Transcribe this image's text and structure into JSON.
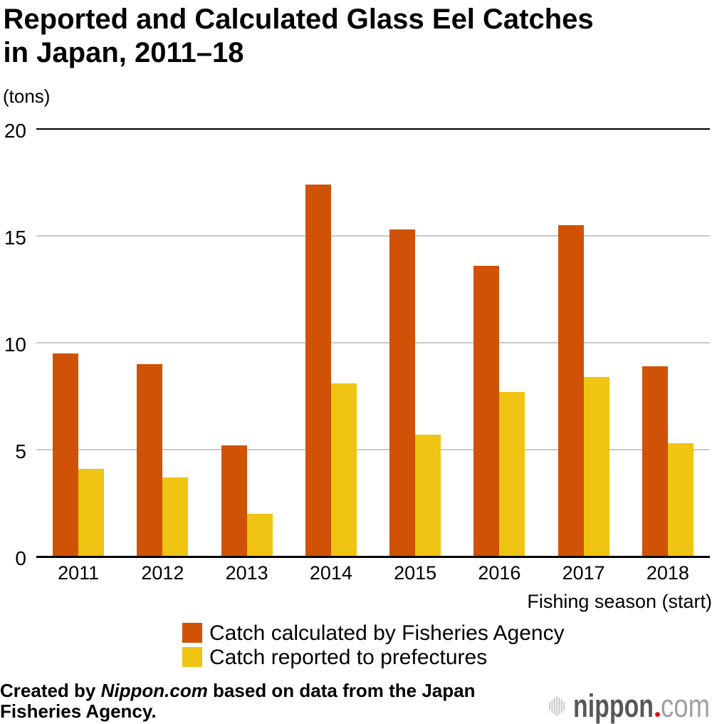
{
  "title": {
    "line1": "Reported and Calculated Glass Eel Catches",
    "line2": "in Japan, 2011–18"
  },
  "unit_label": "(tons)",
  "x_axis_label": "Fishing season (start)",
  "legend": {
    "items": [
      {
        "label": "Catch calculated by Fisheries Agency",
        "color": "#d05206"
      },
      {
        "label": "Catch reported to prefectures",
        "color": "#efc412"
      }
    ]
  },
  "footer": {
    "line1_prefix": "Created by ",
    "line1_brand": "Nippon.com",
    "line1_suffix": " based on data from the Japan",
    "line2": "Fisheries Agency."
  },
  "logo": {
    "icon": "soundbars-icon",
    "name": "nippon",
    "dot": ".",
    "tld": "com",
    "colors": {
      "bars": "#c9caca",
      "name": "#595757",
      "dot": "#e60012",
      "tld": "#9fa0a0"
    }
  },
  "colors": {
    "background": "#ffffff",
    "grid_minor": "#c9c9c9",
    "grid_major": "#000000",
    "text": "#000000"
  },
  "chart_data": {
    "type": "bar",
    "title": "Reported and Calculated Glass Eel Catches in Japan, 2011–18",
    "categories": [
      "2011",
      "2012",
      "2013",
      "2014",
      "2015",
      "2016",
      "2017",
      "2018"
    ],
    "series": [
      {
        "name": "Catch calculated by Fisheries Agency",
        "color": "#d05206",
        "values": [
          9.5,
          9.0,
          5.2,
          17.4,
          15.3,
          13.6,
          15.5,
          8.9
        ]
      },
      {
        "name": "Catch reported to prefectures",
        "color": "#efc412",
        "values": [
          4.1,
          3.7,
          2.0,
          8.1,
          5.7,
          7.7,
          8.4,
          5.3
        ]
      }
    ],
    "xlabel": "Fishing season (start)",
    "ylabel": "(tons)",
    "ylim": [
      0,
      20
    ],
    "yticks": [
      0,
      5,
      10,
      15,
      20
    ],
    "grid": true,
    "legend_position": "bottom"
  }
}
